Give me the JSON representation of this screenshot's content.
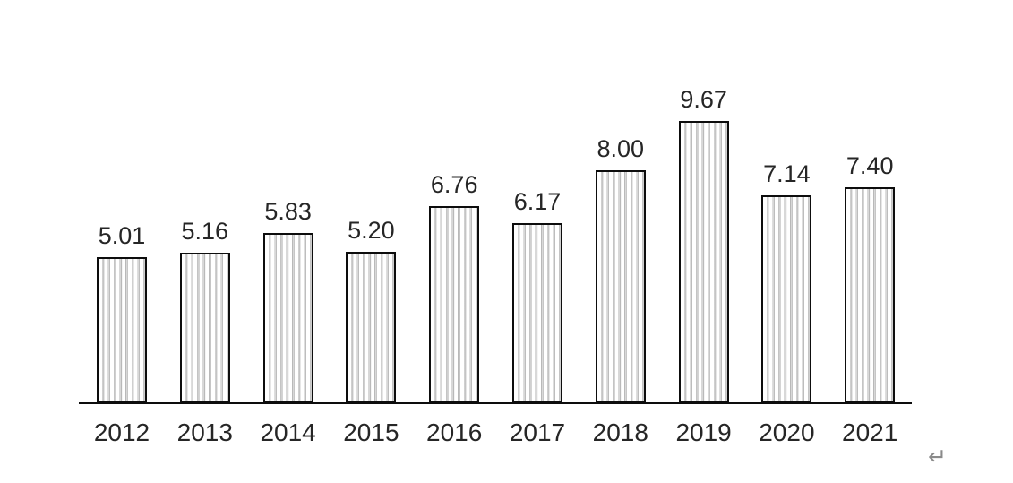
{
  "chart_data": {
    "type": "bar",
    "categories": [
      "2012",
      "2013",
      "2014",
      "2015",
      "2016",
      "2017",
      "2018",
      "2019",
      "2020",
      "2021"
    ],
    "values": [
      5.01,
      5.16,
      5.83,
      5.2,
      6.76,
      6.17,
      8.0,
      9.67,
      7.14,
      7.4
    ],
    "value_labels": [
      "5.01",
      "5.16",
      "5.83",
      "5.20",
      "6.76",
      "6.17",
      "8.00",
      "9.67",
      "7.14",
      "7.40"
    ],
    "title": "",
    "xlabel": "",
    "ylabel": "",
    "ylim": [
      0,
      10
    ],
    "grid": false,
    "legend": false,
    "y_axis_shown": false,
    "data_labels_shown": true,
    "bar_style": {
      "fill": "#ffffff",
      "hatch": "vertical-lines",
      "hatch_color": "#a8a8a8",
      "border_color": "#0d0d0d"
    },
    "label_color": "#262626",
    "axis_color": "#0d0d0d"
  },
  "page": {
    "background": "#ffffff"
  },
  "icons": {
    "line_break_mark": {
      "glyph": "↵",
      "color": "#8a8a8a"
    }
  }
}
